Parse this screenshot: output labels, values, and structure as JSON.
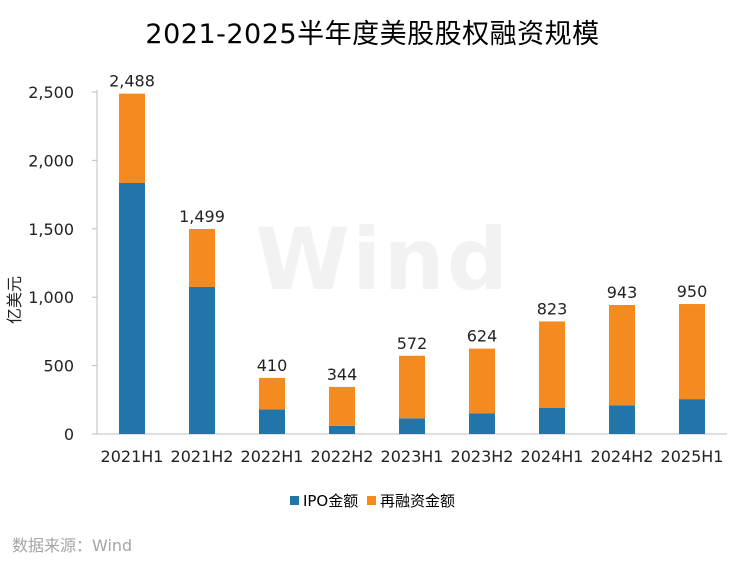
{
  "chart_data": {
    "type": "bar",
    "stacked": true,
    "title": "2021-2025半年度美股股权融资规模",
    "xlabel": "",
    "ylabel": "亿美元",
    "ylim": [
      0,
      2500
    ],
    "yticks": [
      0,
      500,
      1000,
      1500,
      2000,
      2500
    ],
    "ytick_labels": [
      "0",
      "500",
      "1,000",
      "1,500",
      "2,000",
      "2,500"
    ],
    "categories": [
      "2021H1",
      "2021H2",
      "2022H1",
      "2022H2",
      "2023H1",
      "2023H2",
      "2024H1",
      "2024H2",
      "2025H1"
    ],
    "series": [
      {
        "name": "IPO金额",
        "color": "#2175a8",
        "values": [
          1835,
          1075,
          180,
          60,
          115,
          150,
          190,
          210,
          255
        ]
      },
      {
        "name": "再融资金额",
        "color": "#f58a1f",
        "values": [
          653,
          424,
          230,
          284,
          457,
          474,
          633,
          733,
          695
        ]
      }
    ],
    "totals": [
      2488,
      1499,
      410,
      344,
      572,
      624,
      823,
      943,
      950
    ],
    "total_labels": [
      "2,488",
      "1,499",
      "410",
      "344",
      "572",
      "624",
      "823",
      "943",
      "950"
    ],
    "grid": false,
    "legend_position": "bottom"
  },
  "source": "数据来源：Wind",
  "watermark": "Wind"
}
